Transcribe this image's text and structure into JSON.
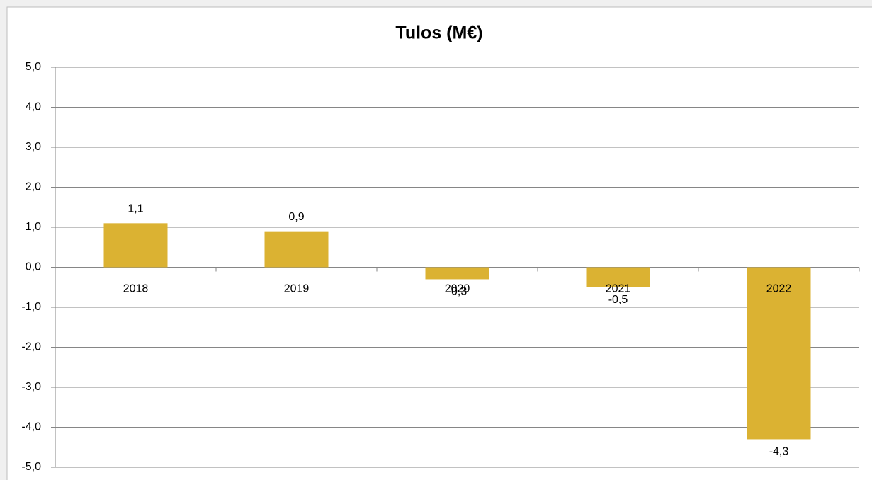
{
  "chart_data": {
    "type": "bar",
    "title": "Tulos (M€)",
    "categories": [
      "2018",
      "2019",
      "2020",
      "2021",
      "2022"
    ],
    "values": [
      1.1,
      0.9,
      -0.3,
      -0.5,
      -4.3
    ],
    "value_labels": [
      "1,1",
      "0,9",
      "-0,3",
      "-0,5",
      "-4,3"
    ],
    "color": "#dbb232",
    "ylim": [
      -5,
      5
    ],
    "yticks": [
      {
        "value": -5,
        "label": "-5,0"
      },
      {
        "value": -4,
        "label": "-4,0"
      },
      {
        "value": -3,
        "label": "-3,0"
      },
      {
        "value": -2,
        "label": "-2,0"
      },
      {
        "value": -1,
        "label": "-1,0"
      },
      {
        "value": 0,
        "label": "0,0"
      },
      {
        "value": 1,
        "label": "1,0"
      },
      {
        "value": 2,
        "label": "2,0"
      },
      {
        "value": 3,
        "label": "3,0"
      },
      {
        "value": 4,
        "label": "4,0"
      },
      {
        "value": 5,
        "label": "5,0"
      }
    ],
    "grid": true
  }
}
